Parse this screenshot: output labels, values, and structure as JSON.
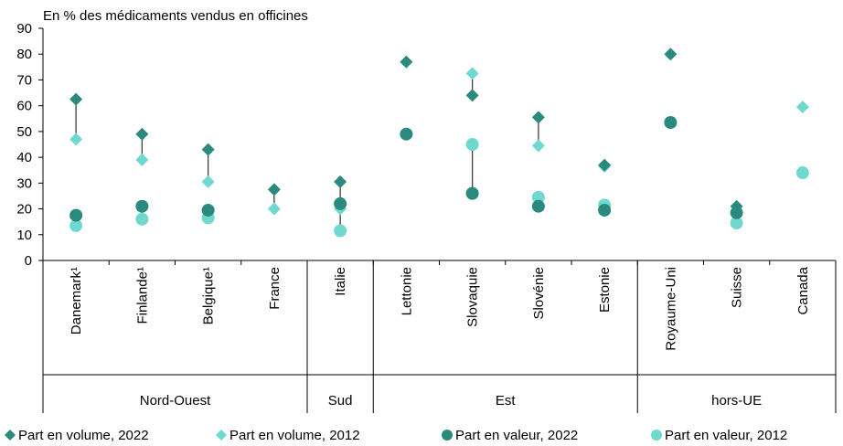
{
  "chart_data": {
    "type": "scatter",
    "title": "En % des médicaments vendus en officines",
    "xlabel": "",
    "ylabel": "",
    "ylim": [
      0,
      90
    ],
    "yticks": [
      0,
      10,
      20,
      30,
      40,
      50,
      60,
      70,
      80,
      90
    ],
    "grid": false,
    "legend_position": "bottom",
    "categories": [
      "Danemark¹",
      "Finlande¹",
      "Belgique¹",
      "France",
      "Italie",
      "Lettonie",
      "Slovaquie",
      "Slovénie",
      "Estonie",
      "Royaume-Uni",
      "Suisse",
      "Canada"
    ],
    "groups": [
      {
        "label": "Nord-Ouest",
        "start": 0,
        "end": 3
      },
      {
        "label": "Sud",
        "start": 4,
        "end": 4
      },
      {
        "label": "Est",
        "start": 5,
        "end": 8
      },
      {
        "label": "hors-UE",
        "start": 9,
        "end": 11
      }
    ],
    "series": [
      {
        "name": "Part en volume, 2022",
        "marker": "diamond",
        "color": "#2a8a7e",
        "values": [
          62.5,
          49,
          43,
          27.5,
          30.5,
          77,
          64,
          55.5,
          37,
          80,
          21,
          null
        ]
      },
      {
        "name": "Part en volume, 2012",
        "marker": "diamond",
        "color": "#6fd9cf",
        "values": [
          47,
          39,
          30.5,
          20,
          20,
          null,
          72.5,
          44.5,
          36.5,
          null,
          null,
          59.5
        ]
      },
      {
        "name": "Part en valeur, 2022",
        "marker": "circle",
        "color": "#2a8a7e",
        "values": [
          17.5,
          21,
          19.5,
          null,
          22,
          49,
          26,
          21,
          19.5,
          53.5,
          18.5,
          null
        ]
      },
      {
        "name": "Part en valeur, 2012",
        "marker": "circle",
        "color": "#6fd9cf",
        "values": [
          13.5,
          16,
          16.5,
          null,
          11.5,
          null,
          45,
          24.5,
          21.5,
          null,
          14.5,
          34
        ]
      }
    ]
  }
}
